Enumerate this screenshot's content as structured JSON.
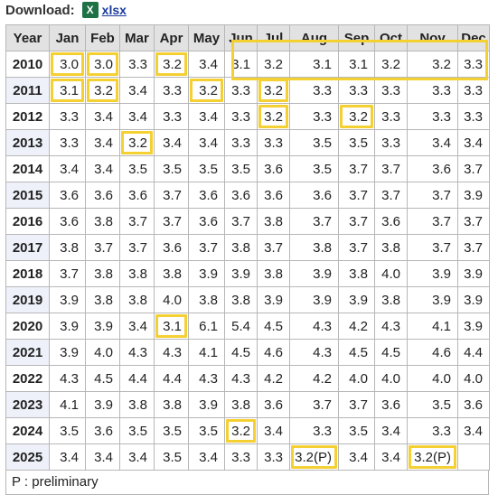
{
  "download": {
    "label": "Download:",
    "icon": "excel-file-icon",
    "link": "xlsx"
  },
  "table": {
    "columns": [
      "Year",
      "Jan",
      "Feb",
      "Mar",
      "Apr",
      "May",
      "Jun",
      "Jul",
      "Aug",
      "Sep",
      "Oct",
      "Nov",
      "Dec"
    ],
    "rows": [
      {
        "year": "2010",
        "values": [
          "3.0",
          "3.0",
          "3.3",
          "3.2",
          "3.4",
          "3.1",
          "3.2",
          "3.1",
          "3.1",
          "3.2",
          "3.2",
          "3.3"
        ]
      },
      {
        "year": "2011",
        "values": [
          "3.1",
          "3.2",
          "3.4",
          "3.3",
          "3.2",
          "3.3",
          "3.2",
          "3.3",
          "3.3",
          "3.3",
          "3.3",
          "3.3"
        ]
      },
      {
        "year": "2012",
        "values": [
          "3.3",
          "3.4",
          "3.4",
          "3.3",
          "3.4",
          "3.3",
          "3.2",
          "3.3",
          "3.2",
          "3.3",
          "3.3",
          "3.3"
        ]
      },
      {
        "year": "2013",
        "values": [
          "3.3",
          "3.4",
          "3.2",
          "3.4",
          "3.4",
          "3.3",
          "3.3",
          "3.5",
          "3.5",
          "3.3",
          "3.4",
          "3.4"
        ]
      },
      {
        "year": "2014",
        "values": [
          "3.4",
          "3.4",
          "3.5",
          "3.5",
          "3.5",
          "3.5",
          "3.6",
          "3.5",
          "3.7",
          "3.7",
          "3.6",
          "3.7"
        ]
      },
      {
        "year": "2015",
        "values": [
          "3.6",
          "3.6",
          "3.6",
          "3.7",
          "3.6",
          "3.6",
          "3.6",
          "3.6",
          "3.7",
          "3.7",
          "3.7",
          "3.9"
        ]
      },
      {
        "year": "2016",
        "values": [
          "3.6",
          "3.8",
          "3.7",
          "3.7",
          "3.6",
          "3.7",
          "3.8",
          "3.7",
          "3.7",
          "3.6",
          "3.7",
          "3.7"
        ]
      },
      {
        "year": "2017",
        "values": [
          "3.8",
          "3.7",
          "3.7",
          "3.6",
          "3.7",
          "3.8",
          "3.7",
          "3.8",
          "3.7",
          "3.8",
          "3.7",
          "3.7"
        ]
      },
      {
        "year": "2018",
        "values": [
          "3.7",
          "3.8",
          "3.8",
          "3.8",
          "3.9",
          "3.9",
          "3.8",
          "3.9",
          "3.8",
          "4.0",
          "3.9",
          "3.9"
        ]
      },
      {
        "year": "2019",
        "values": [
          "3.9",
          "3.8",
          "3.8",
          "4.0",
          "3.8",
          "3.8",
          "3.9",
          "3.9",
          "3.9",
          "3.8",
          "3.9",
          "3.9"
        ]
      },
      {
        "year": "2020",
        "values": [
          "3.9",
          "3.9",
          "3.4",
          "3.1",
          "6.1",
          "5.4",
          "4.5",
          "4.3",
          "4.2",
          "4.3",
          "4.1",
          "3.9"
        ]
      },
      {
        "year": "2021",
        "values": [
          "3.9",
          "4.0",
          "4.3",
          "4.3",
          "4.1",
          "4.5",
          "4.6",
          "4.3",
          "4.5",
          "4.5",
          "4.6",
          "4.4"
        ]
      },
      {
        "year": "2022",
        "values": [
          "4.3",
          "4.5",
          "4.4",
          "4.4",
          "4.3",
          "4.3",
          "4.2",
          "4.2",
          "4.0",
          "4.0",
          "4.0",
          "4.0"
        ]
      },
      {
        "year": "2023",
        "values": [
          "4.1",
          "3.9",
          "3.8",
          "3.8",
          "3.9",
          "3.8",
          "3.6",
          "3.7",
          "3.7",
          "3.6",
          "3.5",
          "3.6"
        ]
      },
      {
        "year": "2024",
        "values": [
          "3.5",
          "3.6",
          "3.5",
          "3.5",
          "3.5",
          "3.2",
          "3.4",
          "3.3",
          "3.5",
          "3.4",
          "3.3",
          "3.4"
        ]
      },
      {
        "year": "2025",
        "values": [
          "3.4",
          "3.4",
          "3.4",
          "3.5",
          "3.4",
          "3.3",
          "3.3",
          "3.2(P)",
          "3.4",
          "3.4",
          "3.2(P)",
          ""
        ]
      }
    ],
    "highlighted_cells": [
      [
        0,
        0
      ],
      [
        0,
        1
      ],
      [
        0,
        3
      ],
      [
        1,
        0
      ],
      [
        1,
        1
      ],
      [
        1,
        4
      ],
      [
        1,
        6
      ],
      [
        2,
        6
      ],
      [
        2,
        8
      ],
      [
        3,
        2
      ],
      [
        10,
        3
      ],
      [
        14,
        5
      ],
      [
        15,
        7
      ],
      [
        15,
        10
      ]
    ],
    "highlight_color": "#f5d033",
    "header_bg": "#e2e2e2",
    "alt_row_bg": "#eef1fa"
  },
  "footnote": "P : preliminary"
}
